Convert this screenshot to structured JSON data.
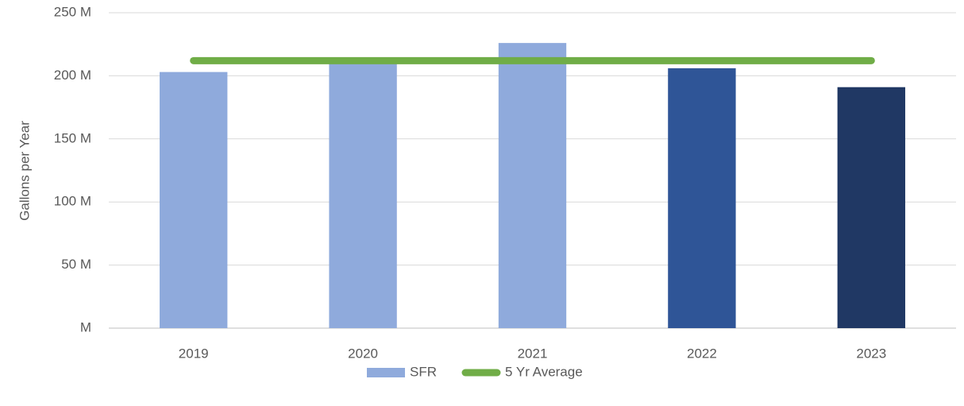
{
  "chart_data": {
    "type": "bar",
    "y_label": "Gallons per Year",
    "categories": [
      "2019",
      "2020",
      "2021",
      "2022",
      "2023"
    ],
    "series": [
      {
        "name": "SFR",
        "type": "bar",
        "colors": [
          "#8faadc",
          "#8faadc",
          "#8faadc",
          "#2f5597",
          "#203864"
        ],
        "values": [
          203,
          211,
          226,
          206,
          191
        ]
      },
      {
        "name": "5 Yr Average",
        "type": "line",
        "color": "#70ad47",
        "values": [
          212,
          212,
          212,
          212,
          212
        ]
      }
    ],
    "ylim": [
      0,
      250
    ],
    "yticks": [
      {
        "value": 0,
        "label": "M"
      },
      {
        "value": 50,
        "label": "50 M"
      },
      {
        "value": 100,
        "label": "100 M"
      },
      {
        "value": 150,
        "label": "150 M"
      },
      {
        "value": 200,
        "label": "200 M"
      },
      {
        "value": 250,
        "label": "250 M"
      }
    ],
    "grid": true,
    "legend": "bottom"
  }
}
